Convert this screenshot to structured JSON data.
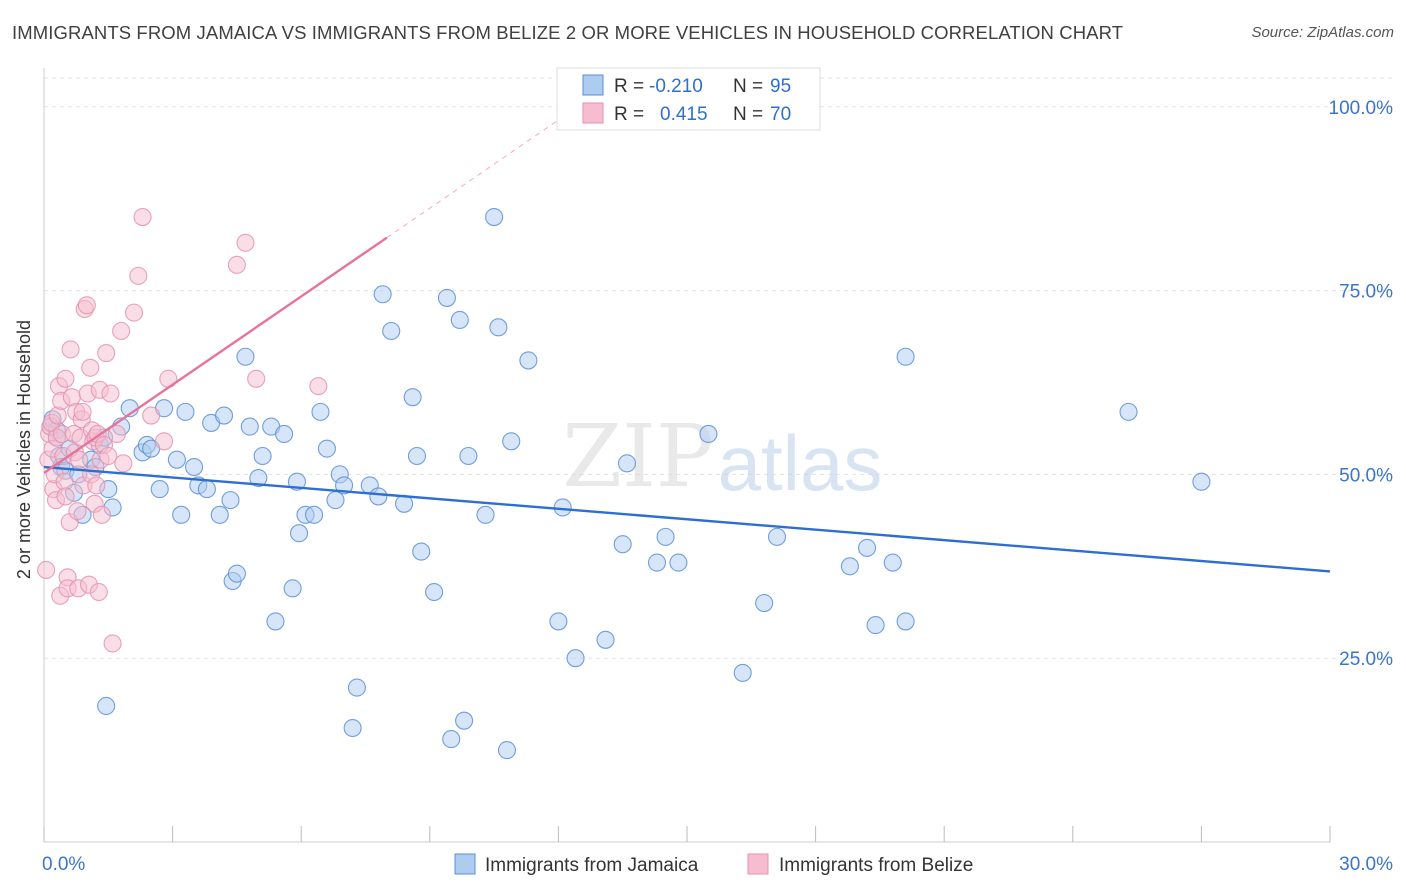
{
  "chart_data": {
    "type": "scatter",
    "title": "IMMIGRANTS FROM JAMAICA VS IMMIGRANTS FROM BELIZE 2 OR MORE VEHICLES IN HOUSEHOLD CORRELATION CHART",
    "source": "Source: ZipAtlas.com",
    "xlabel": "",
    "ylabel": "2 or more Vehicles in Household",
    "xlim": [
      0,
      30
    ],
    "ylim": [
      0,
      105
    ],
    "x_tick_labels": {
      "min": "0.0%",
      "max": "30.0%"
    },
    "y_ticks": [
      25,
      50,
      75,
      100
    ],
    "y_tick_labels": [
      "25.0%",
      "50.0%",
      "75.0%",
      "100.0%"
    ],
    "watermark": {
      "zip": "ZIP",
      "atlas": "atlas"
    },
    "legend_stats": {
      "r_label": "R =",
      "n_label": "N =",
      "rows": [
        {
          "r": "-0.210",
          "n": "95"
        },
        {
          "r": "0.415",
          "n": "70"
        }
      ]
    },
    "series": [
      {
        "name": "Immigrants from Jamaica",
        "color": "#5b8fd6",
        "fill": "#aecbf0",
        "line_color": "#2d6fd1",
        "trend": {
          "x": [
            0.0,
            30.0
          ],
          "y": [
            51.0,
            36.8
          ]
        },
        "points": [
          [
            0.15,
            56.5
          ],
          [
            0.2,
            57.5
          ],
          [
            0.3,
            56
          ],
          [
            0.3,
            55
          ],
          [
            0.35,
            52.5
          ],
          [
            0.4,
            51
          ],
          [
            0.5,
            50.5
          ],
          [
            0.6,
            53.5
          ],
          [
            0.7,
            47.5
          ],
          [
            0.8,
            50
          ],
          [
            0.9,
            44.5
          ],
          [
            1.1,
            52
          ],
          [
            1.2,
            51
          ],
          [
            1.3,
            54
          ],
          [
            1.4,
            55
          ],
          [
            1.45,
            18.5
          ],
          [
            1.5,
            48
          ],
          [
            1.6,
            45.5
          ],
          [
            1.8,
            56.5
          ],
          [
            2.0,
            59
          ],
          [
            2.3,
            53
          ],
          [
            2.4,
            54
          ],
          [
            2.5,
            53.5
          ],
          [
            2.7,
            48
          ],
          [
            2.8,
            59
          ],
          [
            3.1,
            52
          ],
          [
            3.2,
            44.5
          ],
          [
            3.3,
            58.5
          ],
          [
            3.5,
            51
          ],
          [
            3.6,
            48.5
          ],
          [
            3.8,
            48
          ],
          [
            3.9,
            57
          ],
          [
            4.1,
            44.5
          ],
          [
            4.2,
            58
          ],
          [
            4.35,
            46.5
          ],
          [
            4.4,
            35.5
          ],
          [
            4.5,
            36.5
          ],
          [
            4.7,
            66
          ],
          [
            4.8,
            56.5
          ],
          [
            5.0,
            49.5
          ],
          [
            5.1,
            52.5
          ],
          [
            5.3,
            56.5
          ],
          [
            5.6,
            55.5
          ],
          [
            5.8,
            34.5
          ],
          [
            5.4,
            30
          ],
          [
            5.9,
            49
          ],
          [
            5.95,
            42
          ],
          [
            6.1,
            44.5
          ],
          [
            6.3,
            44.5
          ],
          [
            6.45,
            58.5
          ],
          [
            6.6,
            53.5
          ],
          [
            6.8,
            46.5
          ],
          [
            6.9,
            50
          ],
          [
            7.0,
            48.5
          ],
          [
            7.2,
            15.5
          ],
          [
            7.3,
            21
          ],
          [
            7.6,
            48.5
          ],
          [
            7.8,
            47
          ],
          [
            7.9,
            74.5
          ],
          [
            8.1,
            69.5
          ],
          [
            8.4,
            46
          ],
          [
            8.6,
            60.5
          ],
          [
            8.7,
            52.5
          ],
          [
            8.8,
            39.5
          ],
          [
            9.1,
            34
          ],
          [
            9.4,
            74
          ],
          [
            9.5,
            14
          ],
          [
            9.7,
            71
          ],
          [
            9.8,
            16.5
          ],
          [
            9.9,
            52.5
          ],
          [
            10.3,
            44.5
          ],
          [
            10.5,
            85
          ],
          [
            10.6,
            70
          ],
          [
            10.8,
            12.5
          ],
          [
            10.9,
            54.5
          ],
          [
            11.3,
            65.5
          ],
          [
            12.0,
            30
          ],
          [
            12.1,
            45.5
          ],
          [
            12.4,
            25
          ],
          [
            13.1,
            27.5
          ],
          [
            13.5,
            40.5
          ],
          [
            13.6,
            51.5
          ],
          [
            14.3,
            38
          ],
          [
            14.5,
            41.5
          ],
          [
            14.8,
            38
          ],
          [
            15.5,
            55.5
          ],
          [
            16.3,
            23
          ],
          [
            16.8,
            32.5
          ],
          [
            17.1,
            41.5
          ],
          [
            18.8,
            37.5
          ],
          [
            19.2,
            40
          ],
          [
            19.4,
            29.5
          ],
          [
            19.8,
            38
          ],
          [
            20.1,
            30
          ],
          [
            20.1,
            66
          ],
          [
            25.3,
            58.5
          ],
          [
            27.0,
            49
          ]
        ]
      },
      {
        "name": "Immigrants from Belize",
        "color": "#e592ae",
        "fill": "#f6bdd0",
        "line_color": "#e8729a",
        "trend": {
          "x": [
            0.0,
            8.0
          ],
          "y": [
            50.2,
            82.2
          ]
        },
        "trend_ext": {
          "x": [
            8.0,
            12.1
          ],
          "y": [
            82.2,
            98.6
          ]
        },
        "points": [
          [
            0.05,
            37
          ],
          [
            0.1,
            52
          ],
          [
            0.12,
            55.5
          ],
          [
            0.15,
            56.5
          ],
          [
            0.18,
            57
          ],
          [
            0.2,
            53.5
          ],
          [
            0.22,
            48
          ],
          [
            0.25,
            50
          ],
          [
            0.28,
            46.5
          ],
          [
            0.3,
            55
          ],
          [
            0.32,
            58
          ],
          [
            0.35,
            62
          ],
          [
            0.38,
            33.5
          ],
          [
            0.4,
            60
          ],
          [
            0.42,
            55.5
          ],
          [
            0.45,
            52.5
          ],
          [
            0.48,
            49
          ],
          [
            0.5,
            63
          ],
          [
            0.5,
            47
          ],
          [
            0.55,
            36
          ],
          [
            0.55,
            34.5
          ],
          [
            0.6,
            43.5
          ],
          [
            0.62,
            67
          ],
          [
            0.65,
            60.5
          ],
          [
            0.7,
            55.5
          ],
          [
            0.72,
            53
          ],
          [
            0.75,
            58.5
          ],
          [
            0.78,
            45
          ],
          [
            0.8,
            34.5
          ],
          [
            0.82,
            52
          ],
          [
            0.85,
            55
          ],
          [
            0.88,
            57.5
          ],
          [
            0.9,
            58.5
          ],
          [
            0.92,
            48.5
          ],
          [
            0.95,
            72.5
          ],
          [
            1.0,
            73
          ],
          [
            1.02,
            61
          ],
          [
            1.05,
            35
          ],
          [
            1.08,
            64.5
          ],
          [
            1.1,
            50
          ],
          [
            1.12,
            56
          ],
          [
            1.15,
            54.5
          ],
          [
            1.18,
            46
          ],
          [
            1.2,
            55
          ],
          [
            1.22,
            48.5
          ],
          [
            1.25,
            55.5
          ],
          [
            1.28,
            34
          ],
          [
            1.3,
            61.5
          ],
          [
            1.32,
            52
          ],
          [
            1.35,
            44.5
          ],
          [
            1.4,
            54
          ],
          [
            1.45,
            66.5
          ],
          [
            1.5,
            52.5
          ],
          [
            1.55,
            61
          ],
          [
            1.6,
            27
          ],
          [
            1.7,
            55.5
          ],
          [
            1.8,
            69.5
          ],
          [
            1.85,
            51.5
          ],
          [
            2.1,
            72
          ],
          [
            2.2,
            77
          ],
          [
            2.3,
            85
          ],
          [
            2.5,
            58
          ],
          [
            2.8,
            54.5
          ],
          [
            2.9,
            63
          ],
          [
            4.5,
            78.5
          ],
          [
            4.7,
            81.5
          ],
          [
            4.95,
            63
          ],
          [
            6.4,
            62
          ]
        ]
      }
    ]
  }
}
